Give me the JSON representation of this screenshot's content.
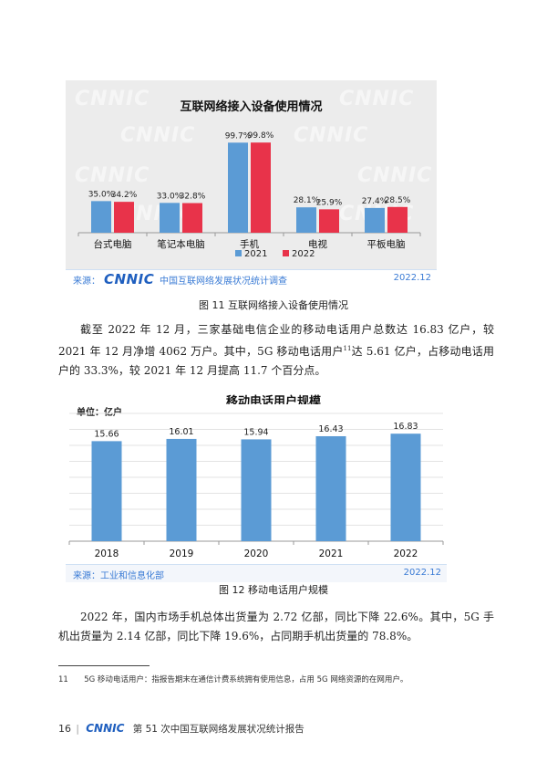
{
  "watermark": "CNNIC",
  "chart1": {
    "title": "互联网络接入设备使用情况",
    "source_prefix": "来源：",
    "source_logo": "CNNIC",
    "source_org": "中国互联网络发展状况统计调查",
    "source_date": "2022.12",
    "caption": "图 11  互联网络接入设备使用情况",
    "colors": {
      "2021": "#5b9bd5",
      "2022": "#e8334a"
    }
  },
  "chart2": {
    "title": "移动电话用户规模",
    "unit": "单位：亿户",
    "source": "来源：工业和信息化部",
    "source_date": "2022.12",
    "caption": "图 12  移动电话用户规模",
    "color": "#5b9bd5"
  },
  "chart_data": [
    {
      "type": "bar",
      "title": "互联网络接入设备使用情况",
      "categories": [
        "台式电脑",
        "笔记本电脑",
        "手机",
        "电视",
        "平板电脑"
      ],
      "series": [
        {
          "name": "2021",
          "values": [
            35.0,
            33.0,
            99.7,
            28.1,
            27.4
          ],
          "labels": [
            "35.0%",
            "33.0%",
            "99.7%",
            "28.1%",
            "27.4%"
          ]
        },
        {
          "name": "2022",
          "values": [
            34.2,
            32.8,
            99.8,
            25.9,
            28.5
          ],
          "labels": [
            "34.2%",
            "32.8%",
            "99.8%",
            "25.9%",
            "28.5%"
          ]
        }
      ],
      "ylim": [
        0,
        100
      ],
      "legend": "bottom",
      "grid": false
    },
    {
      "type": "bar",
      "title": "移动电话用户规模",
      "ylabel": "单位：亿户",
      "categories": [
        "2018",
        "2019",
        "2020",
        "2021",
        "2022"
      ],
      "values": [
        15.66,
        16.01,
        15.94,
        16.43,
        16.83
      ],
      "labels": [
        "15.66",
        "16.01",
        "15.94",
        "16.43",
        "16.83"
      ],
      "ylim": [
        0,
        20
      ],
      "grid": true
    }
  ],
  "body": {
    "para1_a": "截至 2022 年 12 月，三家基础电信企业的移动电话用户总数达 16.83 亿户，较 2021 年 12 月净增 4062 万户。其中，5G 移动电话用户",
    "para1_sup": "11",
    "para1_b": "达 5.61 亿户，占移动电话用户的 33.3%，较 2021 年 12 月提高 11.7 个百分点。",
    "para2": "2022 年，国内市场手机总体出货量为 2.72 亿部，同比下降 22.6%。其中，5G 手机出货量为 2.14 亿部，同比下降 19.6%，占同期手机出货量的 78.8%。"
  },
  "footnote": {
    "number": "11",
    "text": "5G 移动电话用户：指报告期末在通信计费系统拥有使用信息，占用 5G 网络资源的在网用户。"
  },
  "footer": {
    "page_number": "16",
    "separator": "|",
    "logo": "CNNIC",
    "title": "第 51 次中国互联网络发展状况统计报告"
  }
}
